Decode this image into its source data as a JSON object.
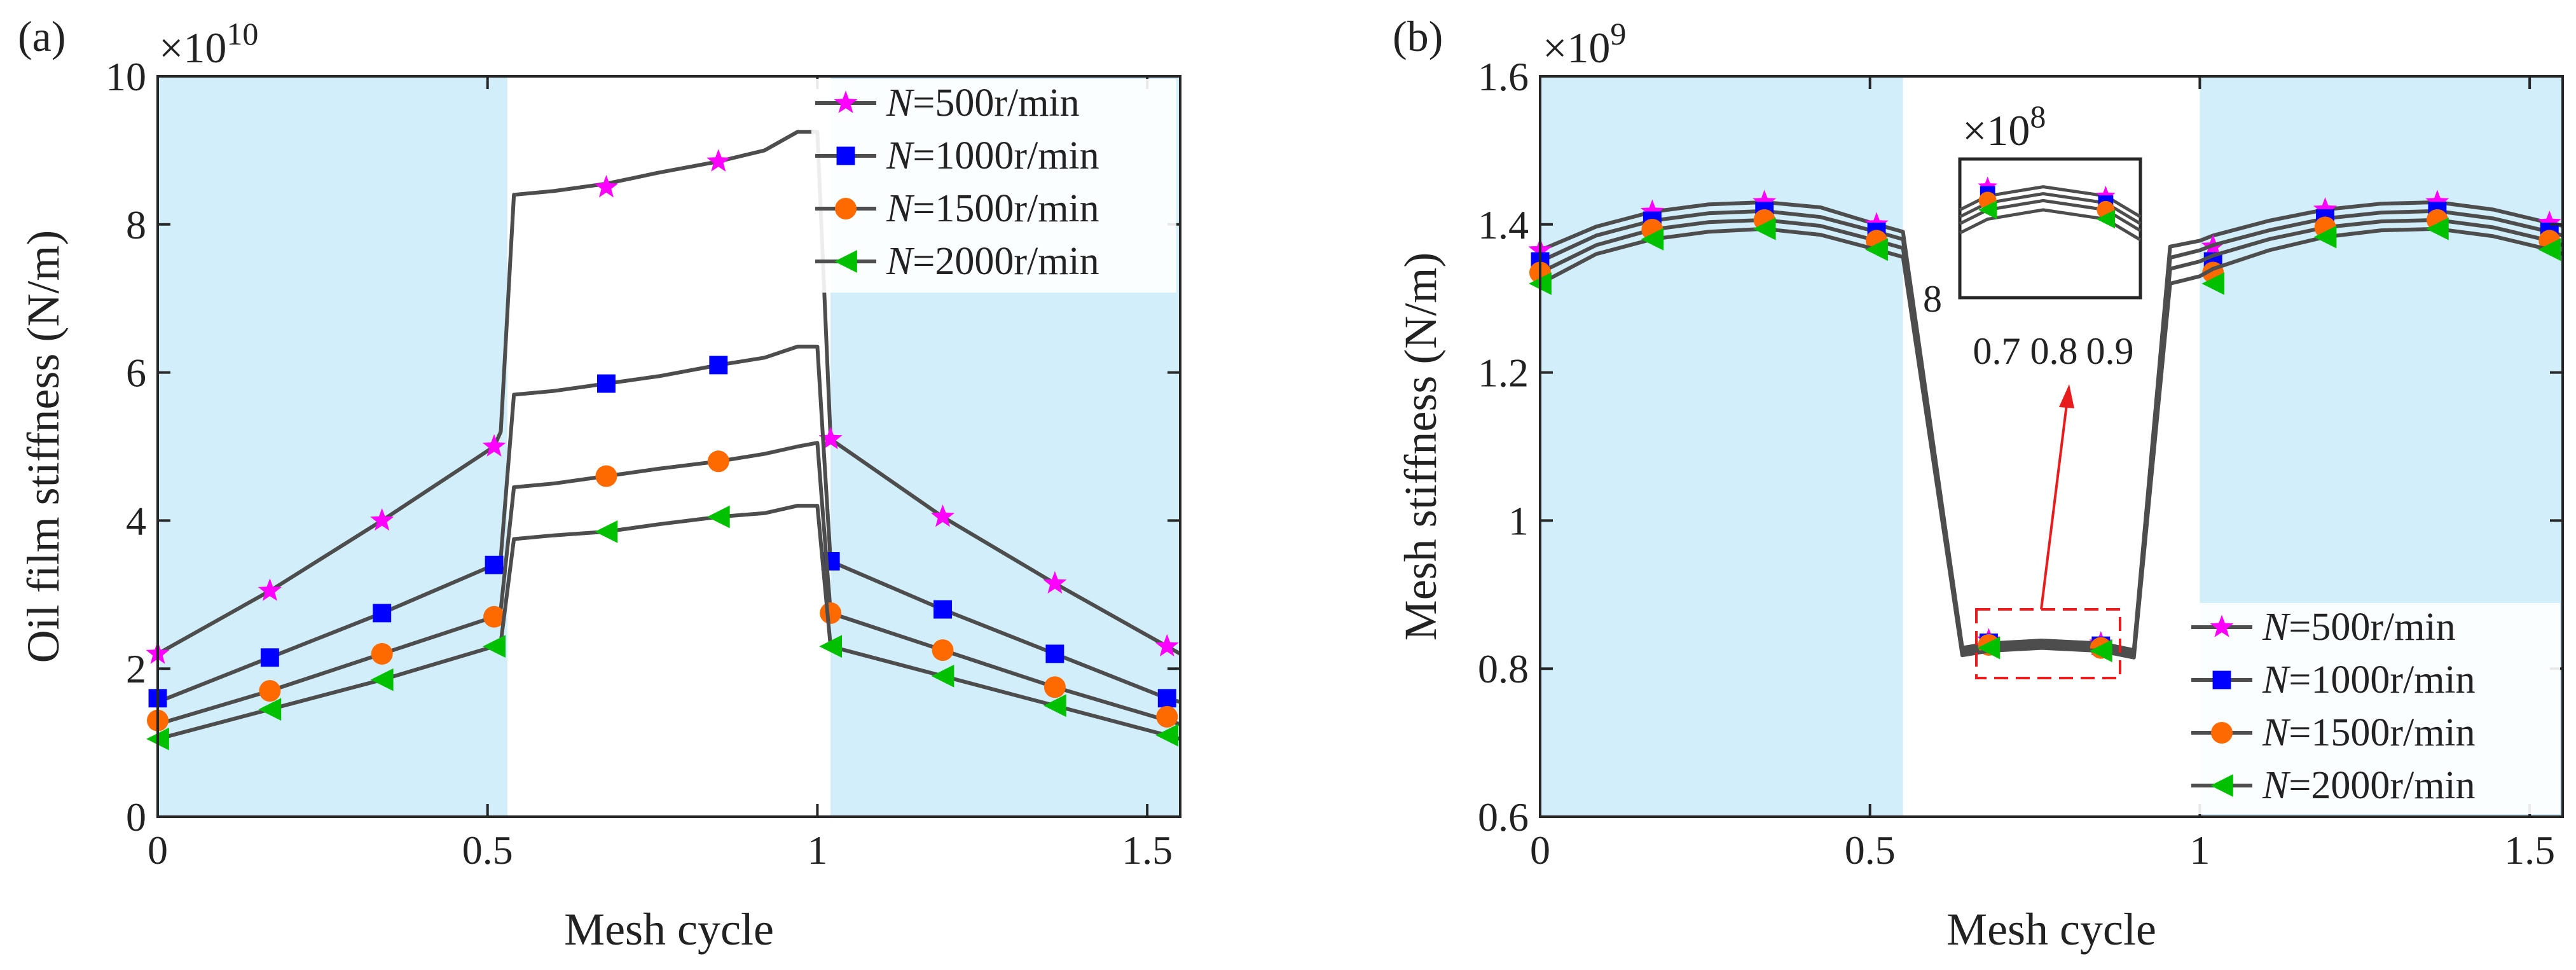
{
  "colors": {
    "shade": "#d1eefa",
    "line": "#4d4d4d",
    "axis": "#262626",
    "arrow": "#e81c1c",
    "n500": "#ff00ff",
    "n1000": "#0000ff",
    "n1500": "#ff6a00",
    "n2000": "#00c000"
  },
  "legend": {
    "var": "N",
    "items": [
      "=500r/min",
      "=1000r/min",
      "=1500r/min",
      "=2000r/min"
    ]
  },
  "panel_a": {
    "label": "(a)",
    "multiplier": {
      "base": "×10",
      "exp": "10"
    },
    "xlabel": "Mesh cycle",
    "ylabel": "Oil film stiffness (N/m)",
    "xticks": [
      "0",
      "0.5",
      "1",
      "1.5"
    ],
    "yticks": [
      "0",
      "2",
      "4",
      "6",
      "8",
      "10"
    ]
  },
  "panel_b": {
    "label": "(b)",
    "multiplier": {
      "base": "×10",
      "exp": "9"
    },
    "xlabel": "Mesh cycle",
    "ylabel": "Mesh stiffness (N/m)",
    "xticks": [
      "0",
      "0.5",
      "1",
      "1.5"
    ],
    "yticks": [
      "0.6",
      "0.8",
      "1",
      "1.2",
      "1.4",
      "1.6"
    ],
    "inset": {
      "multiplier": {
        "base": "×10",
        "exp": "8"
      },
      "ytick": "8",
      "xticks": [
        "0.7",
        "0.8",
        "0.9"
      ]
    }
  },
  "chart_data": [
    {
      "type": "line",
      "panel": "a",
      "title": "",
      "xlabel": "Mesh cycle",
      "ylabel": "Oil film stiffness (N/m)",
      "xlim": [
        0,
        1.55
      ],
      "ylim": [
        0,
        10
      ],
      "y_scale": "1e10",
      "shaded_x": [
        [
          0,
          0.53
        ],
        [
          1.02,
          1.55
        ]
      ],
      "legend_loc": "top-right",
      "marker_x": [
        0,
        0.17,
        0.34,
        0.51,
        0.68,
        0.85,
        1.02,
        1.19,
        1.36,
        1.53
      ],
      "series": [
        {
          "name": "N=500r/min",
          "marker": "star",
          "x": [
            0,
            0.17,
            0.34,
            0.51,
            0.52,
            0.54,
            0.6,
            0.68,
            0.76,
            0.85,
            0.92,
            0.97,
            1.0,
            1.02,
            1.19,
            1.36,
            1.53,
            1.55
          ],
          "y": [
            2.2,
            3.05,
            4.0,
            5.0,
            5.2,
            8.4,
            8.45,
            8.55,
            8.7,
            8.85,
            9.0,
            9.25,
            9.25,
            5.1,
            4.05,
            3.15,
            2.3,
            2.2
          ],
          "marker_y": [
            2.2,
            3.05,
            4.0,
            5.0,
            8.5,
            8.85,
            5.1,
            4.05,
            3.15,
            2.3
          ]
        },
        {
          "name": "N=1000r/min",
          "marker": "square",
          "x": [
            0,
            0.17,
            0.34,
            0.51,
            0.52,
            0.54,
            0.6,
            0.68,
            0.76,
            0.85,
            0.92,
            0.97,
            1.0,
            1.02,
            1.19,
            1.36,
            1.53,
            1.55
          ],
          "y": [
            1.55,
            2.15,
            2.75,
            3.4,
            3.5,
            5.7,
            5.75,
            5.85,
            5.95,
            6.1,
            6.2,
            6.35,
            6.35,
            3.45,
            2.8,
            2.2,
            1.6,
            1.55
          ],
          "marker_y": [
            1.6,
            2.15,
            2.75,
            3.4,
            5.85,
            6.1,
            3.45,
            2.8,
            2.2,
            1.6
          ]
        },
        {
          "name": "N=1500r/min",
          "marker": "circle",
          "x": [
            0,
            0.17,
            0.34,
            0.51,
            0.52,
            0.54,
            0.6,
            0.68,
            0.76,
            0.85,
            0.92,
            0.97,
            1.0,
            1.02,
            1.19,
            1.36,
            1.53,
            1.55
          ],
          "y": [
            1.25,
            1.7,
            2.2,
            2.7,
            2.8,
            4.45,
            4.5,
            4.6,
            4.7,
            4.8,
            4.9,
            5.0,
            5.05,
            2.75,
            2.25,
            1.75,
            1.3,
            1.25
          ],
          "marker_y": [
            1.3,
            1.7,
            2.2,
            2.7,
            4.6,
            4.8,
            2.75,
            2.25,
            1.75,
            1.35
          ]
        },
        {
          "name": "N=2000r/min",
          "marker": "triangle-left",
          "x": [
            0,
            0.17,
            0.34,
            0.51,
            0.52,
            0.54,
            0.6,
            0.68,
            0.76,
            0.85,
            0.92,
            0.97,
            1.0,
            1.02,
            1.19,
            1.36,
            1.53,
            1.55
          ],
          "y": [
            1.05,
            1.45,
            1.85,
            2.3,
            2.35,
            3.75,
            3.8,
            3.85,
            3.95,
            4.05,
            4.1,
            4.2,
            4.2,
            2.3,
            1.9,
            1.5,
            1.1,
            1.05
          ],
          "marker_y": [
            1.05,
            1.45,
            1.85,
            2.3,
            3.85,
            4.05,
            2.3,
            1.9,
            1.5,
            1.1
          ]
        }
      ]
    },
    {
      "type": "line",
      "panel": "b",
      "title": "",
      "xlabel": "Mesh cycle",
      "ylabel": "Mesh stiffness (N/m)",
      "xlim": [
        0,
        1.55
      ],
      "ylim": [
        0.6,
        1.6
      ],
      "y_scale": "1e9",
      "shaded_x": [
        [
          0,
          0.55
        ],
        [
          1.0,
          1.55
        ]
      ],
      "legend_loc": "bottom-right",
      "marker_x": [
        0,
        0.17,
        0.34,
        0.51,
        0.68,
        0.85,
        1.02,
        1.19,
        1.36,
        1.53
      ],
      "series": [
        {
          "name": "N=500r/min",
          "marker": "star",
          "x": [
            0,
            0.085,
            0.17,
            0.255,
            0.34,
            0.425,
            0.51,
            0.55,
            0.64,
            0.68,
            0.76,
            0.85,
            0.9,
            0.955,
            1.0,
            1.02,
            1.105,
            1.19,
            1.275,
            1.36,
            1.445,
            1.53,
            1.55
          ],
          "y": [
            1.365,
            1.397,
            1.417,
            1.427,
            1.43,
            1.423,
            1.4,
            1.39,
            0.828,
            0.834,
            0.838,
            0.834,
            0.825,
            1.37,
            1.378,
            1.385,
            1.405,
            1.42,
            1.428,
            1.43,
            1.42,
            1.402,
            1.398
          ],
          "marker_y": [
            1.365,
            1.417,
            1.43,
            1.4,
            0.838,
            0.834,
            1.37,
            1.42,
            1.43,
            1.402
          ]
        },
        {
          "name": "N=1000r/min",
          "marker": "square",
          "x": [
            0,
            0.085,
            0.17,
            0.255,
            0.34,
            0.425,
            0.51,
            0.55,
            0.64,
            0.68,
            0.76,
            0.85,
            0.9,
            0.955,
            1.0,
            1.02,
            1.105,
            1.19,
            1.275,
            1.36,
            1.445,
            1.53,
            1.55
          ],
          "y": [
            1.35,
            1.385,
            1.405,
            1.415,
            1.418,
            1.41,
            1.39,
            1.38,
            0.825,
            0.831,
            0.835,
            0.831,
            0.822,
            1.355,
            1.365,
            1.372,
            1.392,
            1.408,
            1.416,
            1.418,
            1.408,
            1.39,
            1.385
          ],
          "marker_y": [
            1.35,
            1.405,
            1.418,
            1.39,
            0.835,
            0.831,
            1.35,
            1.408,
            1.418,
            1.39
          ]
        },
        {
          "name": "N=1500r/min",
          "marker": "circle",
          "x": [
            0,
            0.085,
            0.17,
            0.255,
            0.34,
            0.425,
            0.51,
            0.55,
            0.64,
            0.68,
            0.76,
            0.85,
            0.9,
            0.955,
            1.0,
            1.02,
            1.105,
            1.19,
            1.275,
            1.36,
            1.445,
            1.53,
            1.55
          ],
          "y": [
            1.335,
            1.372,
            1.393,
            1.403,
            1.406,
            1.398,
            1.378,
            1.368,
            0.822,
            0.828,
            0.832,
            0.828,
            0.819,
            1.34,
            1.35,
            1.358,
            1.38,
            1.396,
            1.404,
            1.406,
            1.396,
            1.378,
            1.372
          ],
          "marker_y": [
            1.335,
            1.393,
            1.406,
            1.378,
            0.832,
            0.828,
            1.335,
            1.396,
            1.406,
            1.378
          ]
        },
        {
          "name": "N=2000r/min",
          "marker": "triangle-left",
          "x": [
            0,
            0.085,
            0.17,
            0.255,
            0.34,
            0.425,
            0.51,
            0.55,
            0.64,
            0.68,
            0.76,
            0.85,
            0.9,
            0.955,
            1.0,
            1.02,
            1.105,
            1.19,
            1.275,
            1.36,
            1.445,
            1.53,
            1.55
          ],
          "y": [
            1.32,
            1.36,
            1.38,
            1.39,
            1.394,
            1.386,
            1.366,
            1.356,
            0.818,
            0.824,
            0.828,
            0.824,
            0.815,
            1.32,
            1.33,
            1.34,
            1.365,
            1.383,
            1.392,
            1.394,
            1.384,
            1.366,
            1.36
          ],
          "marker_y": [
            1.32,
            1.38,
            1.394,
            1.366,
            0.828,
            0.824,
            1.32,
            1.383,
            1.394,
            1.366
          ]
        }
      ]
    }
  ]
}
